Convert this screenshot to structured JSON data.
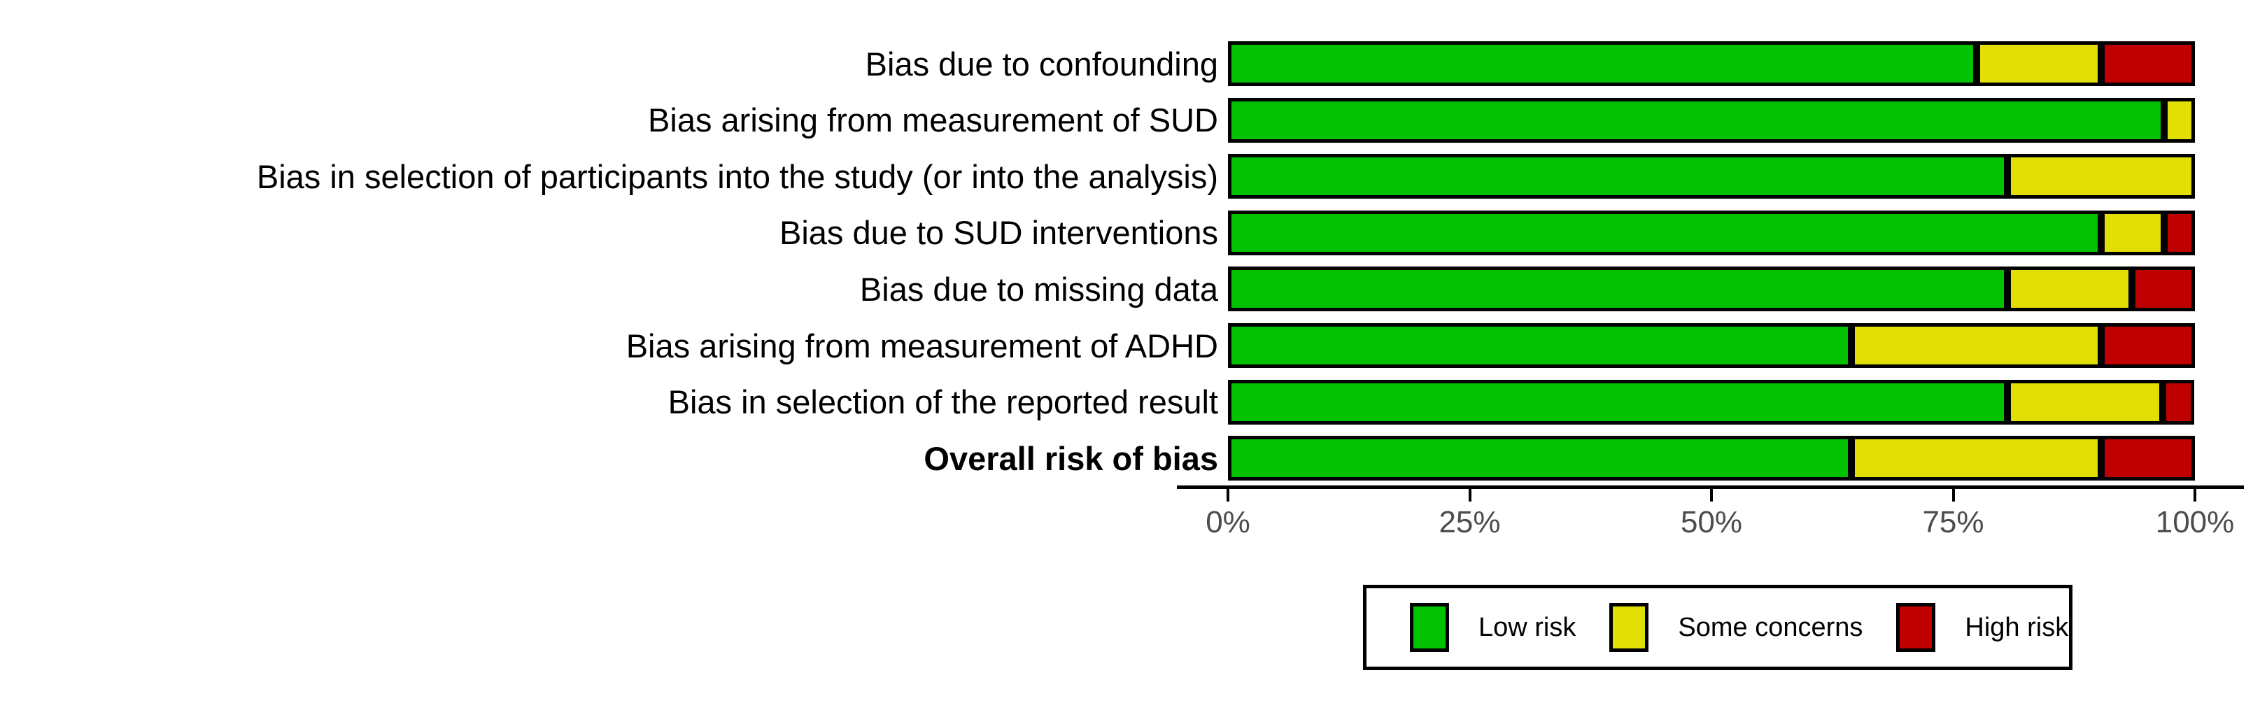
{
  "figure": {
    "background": "#FFFFFF"
  },
  "chart_data": {
    "type": "bar",
    "variant": "horizontal_stacked_percent",
    "title": "",
    "xlabel": "",
    "ylabel": "",
    "x_axis": {
      "range": [
        0,
        100
      ],
      "ticks": [
        {
          "label": "0%",
          "value": 0
        },
        {
          "label": "25%",
          "value": 25
        },
        {
          "label": "50%",
          "value": 50
        },
        {
          "label": "75%",
          "value": 75
        },
        {
          "label": "100%",
          "value": 100
        }
      ]
    },
    "categories": [
      {
        "label": "Bias due to confounding",
        "bold": false
      },
      {
        "label": "Bias arising from measurement of SUD",
        "bold": false
      },
      {
        "label": "Bias in selection of participants into the study (or into the analysis)",
        "bold": false
      },
      {
        "label": "Bias due to SUD interventions",
        "bold": false
      },
      {
        "label": "Bias due to missing data",
        "bold": false
      },
      {
        "label": "Bias arising from measurement of ADHD",
        "bold": false
      },
      {
        "label": "Bias in selection of the reported result",
        "bold": false
      },
      {
        "label": "Overall risk of bias",
        "bold": true
      }
    ],
    "series": [
      {
        "name": "Low risk",
        "color": "#02C100",
        "values": [
          77.4,
          96.8,
          80.6,
          90.3,
          80.6,
          64.5,
          80.6,
          64.5
        ]
      },
      {
        "name": "Some concerns",
        "color": "#E2DF07",
        "values": [
          12.9,
          3.2,
          19.4,
          6.5,
          12.9,
          25.8,
          16.1,
          25.8
        ]
      },
      {
        "name": "High risk",
        "color": "#BF0000",
        "values": [
          9.7,
          0,
          0,
          3.2,
          6.5,
          9.7,
          3.2,
          9.7
        ]
      }
    ],
    "legend": {
      "position": "bottom",
      "items": [
        "Low risk",
        "Some concerns",
        "High risk"
      ]
    },
    "grid": "off",
    "bar_border_color": "#000000",
    "axis_color": "#000000",
    "tick_label_color": "#4D4D4D"
  }
}
